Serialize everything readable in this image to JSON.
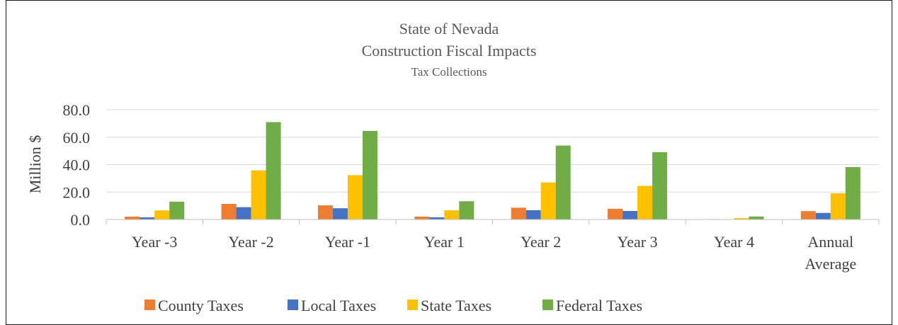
{
  "chart_data": {
    "type": "bar",
    "title": "State of Nevada",
    "subtitle": "Construction Fiscal Impacts",
    "subtitle2": "Tax Collections",
    "ylabel": "Million $",
    "xlabel": "",
    "ylim": [
      0,
      80
    ],
    "yticks": [
      0,
      20,
      40,
      60,
      80
    ],
    "ytick_labels": [
      "0.0",
      "20.0",
      "40.0",
      "60.0",
      "80.0"
    ],
    "grid": true,
    "legend_position": "bottom",
    "categories": [
      [
        "Year -3"
      ],
      [
        "Year -2"
      ],
      [
        "Year -1"
      ],
      [
        "Year 1"
      ],
      [
        "Year 2"
      ],
      [
        "Year 3"
      ],
      [
        "Year 4"
      ],
      [
        "Annual",
        "Average"
      ]
    ],
    "series": [
      {
        "name": "County Taxes",
        "color": "#ED7D31",
        "values": [
          2.1,
          11.4,
          10.3,
          2.1,
          8.6,
          7.8,
          0.3,
          6.1
        ]
      },
      {
        "name": "Local Taxes",
        "color": "#4472C4",
        "values": [
          1.6,
          9.0,
          8.2,
          1.6,
          6.8,
          6.2,
          0.2,
          4.8
        ]
      },
      {
        "name": "State Taxes",
        "color": "#FFC000",
        "values": [
          6.6,
          35.8,
          32.3,
          6.7,
          27.0,
          24.5,
          1.0,
          19.1
        ]
      },
      {
        "name": "Federal Taxes",
        "color": "#70AD47",
        "values": [
          13.0,
          71.0,
          64.6,
          13.3,
          53.9,
          49.1,
          2.2,
          38.2
        ]
      }
    ]
  }
}
